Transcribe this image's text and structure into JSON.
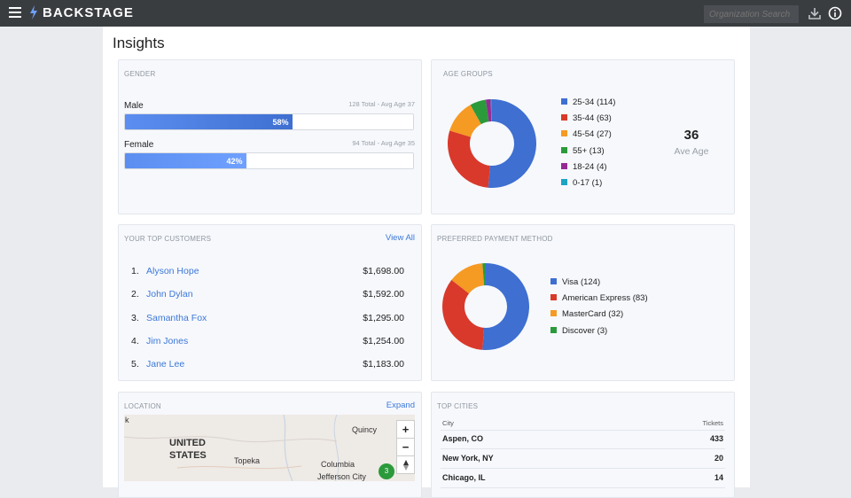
{
  "topbar": {
    "brand": "BACKSTAGE",
    "search_placeholder": "Organization Search",
    "icons": [
      "menu-icon",
      "bolt-logo-icon",
      "download-icon",
      "info-icon"
    ]
  },
  "page": {
    "title": "Insights"
  },
  "gender": {
    "title": "GENDER",
    "items": [
      {
        "label": "Male",
        "stat": "128 Total - Avg Age 37",
        "percent_label": "58%",
        "fraction": 0.58
      },
      {
        "label": "Female",
        "stat": "94 Total - Avg Age 35",
        "percent_label": "42%",
        "fraction": 0.42
      }
    ]
  },
  "age_groups": {
    "title": "AGE GROUPS",
    "avg_value": "36",
    "avg_label": "Ave Age",
    "legend": [
      {
        "label": "25-34",
        "count": "(114)",
        "value": 114,
        "color": "#3e6fd1"
      },
      {
        "label": "35-44",
        "count": "(63)",
        "value": 63,
        "color": "#d9392b"
      },
      {
        "label": "45-54",
        "count": "(27)",
        "value": 27,
        "color": "#f59a23"
      },
      {
        "label": "55+",
        "count": "(13)",
        "value": 13,
        "color": "#2b9a3b"
      },
      {
        "label": "18-24",
        "count": "(4)",
        "value": 4,
        "color": "#962a94"
      },
      {
        "label": "0-17",
        "count": "(1)",
        "value": 1,
        "color": "#1da3c4"
      }
    ]
  },
  "customers": {
    "title": "YOUR TOP CUSTOMERS",
    "view_all": "View All",
    "rows": [
      {
        "rank": "1.",
        "name": "Alyson Hope",
        "amount": "$1,698.00"
      },
      {
        "rank": "2.",
        "name": "John Dylan",
        "amount": "$1,592.00"
      },
      {
        "rank": "3.",
        "name": "Samantha Fox",
        "amount": "$1,295.00"
      },
      {
        "rank": "4.",
        "name": "Jim Jones",
        "amount": "$1,254.00"
      },
      {
        "rank": "5.",
        "name": "Jane Lee",
        "amount": "$1,183.00"
      }
    ]
  },
  "payment": {
    "title": "PREFERRED PAYMENT METHOD",
    "legend": [
      {
        "label": "Visa",
        "count": "(124)",
        "value": 124,
        "color": "#3e6fd1"
      },
      {
        "label": "American Express",
        "count": "(83)",
        "value": 83,
        "color": "#d9392b"
      },
      {
        "label": "MasterCard",
        "count": "(32)",
        "value": 32,
        "color": "#f59a23"
      },
      {
        "label": "Discover",
        "count": "(3)",
        "value": 3,
        "color": "#2b9a3b"
      }
    ]
  },
  "location": {
    "title": "LOCATION",
    "expand": "Expand",
    "map_labels": {
      "edge": "k",
      "country": "UNITED",
      "country2": "STATES",
      "c1": "Quincy",
      "c2": "Topeka",
      "c3": "Columbia",
      "c4": "Jefferson City"
    },
    "zoom_in": "+",
    "zoom_out": "−",
    "marker_count": "3"
  },
  "cities": {
    "title": "TOP CITIES",
    "col_city": "City",
    "col_tickets": "Tickets",
    "rows": [
      {
        "city": "Aspen, CO",
        "tickets": "433"
      },
      {
        "city": "New York, NY",
        "tickets": "20"
      },
      {
        "city": "Chicago, IL",
        "tickets": "14"
      }
    ]
  }
}
